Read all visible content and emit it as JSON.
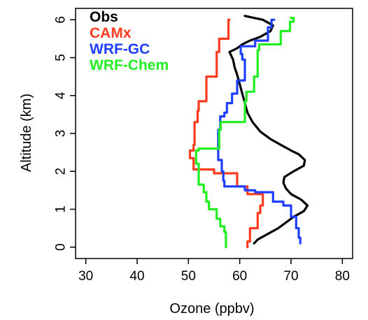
{
  "chart_data": {
    "type": "line",
    "title": "",
    "xlabel": "Ozone (ppbv)",
    "ylabel": "Altitude (km)",
    "xlim": [
      28,
      82
    ],
    "ylim": [
      -0.3,
      6.3
    ],
    "x_ticks": [
      "30",
      "40",
      "50",
      "60",
      "70",
      "80"
    ],
    "y_ticks": [
      "0",
      "1",
      "2",
      "3",
      "4",
      "5",
      "6"
    ],
    "legend_position": "top-left",
    "series": [
      {
        "name": "Obs",
        "color": "#000000",
        "points": [
          [
            62.8,
            0.1
          ],
          [
            63.5,
            0.2
          ],
          [
            65.5,
            0.35
          ],
          [
            67.5,
            0.5
          ],
          [
            69,
            0.65
          ],
          [
            70.5,
            0.8
          ],
          [
            72.5,
            0.95
          ],
          [
            73.2,
            1.1
          ],
          [
            72,
            1.25
          ],
          [
            70,
            1.4
          ],
          [
            69,
            1.55
          ],
          [
            68.5,
            1.7
          ],
          [
            68.7,
            1.85
          ],
          [
            70.5,
            2
          ],
          [
            72.5,
            2.15
          ],
          [
            72.7,
            2.3
          ],
          [
            71.5,
            2.45
          ],
          [
            70,
            2.55
          ],
          [
            68,
            2.7
          ],
          [
            66,
            2.85
          ],
          [
            64,
            3.05
          ],
          [
            62.5,
            3.3
          ],
          [
            61.5,
            3.55
          ],
          [
            61,
            3.8
          ],
          [
            60.5,
            4.05
          ],
          [
            60,
            4.3
          ],
          [
            59.5,
            4.55
          ],
          [
            59,
            4.75
          ],
          [
            58.7,
            4.95
          ],
          [
            58,
            5.15
          ],
          [
            59.5,
            5.25
          ],
          [
            60.5,
            5.35
          ],
          [
            62,
            5.45
          ],
          [
            64,
            5.55
          ],
          [
            66,
            5.7
          ],
          [
            66.5,
            5.85
          ],
          [
            64.5,
            6
          ],
          [
            61,
            6.1
          ]
        ]
      },
      {
        "name": "CAMx",
        "color": "#ff3b1f",
        "steps": [
          [
            61.5,
            0
          ],
          [
            62,
            0.15
          ],
          [
            63.5,
            0.5
          ],
          [
            64,
            0.9
          ],
          [
            64.5,
            1.1
          ],
          [
            61.5,
            1.4
          ],
          [
            59.5,
            1.6
          ],
          [
            55,
            1.95
          ],
          [
            51,
            2.05
          ],
          [
            50.3,
            2.35
          ],
          [
            51,
            2.55
          ],
          [
            51.2,
            2.7
          ],
          [
            51.8,
            3.3
          ],
          [
            52,
            3.6
          ],
          [
            53.5,
            3.85
          ],
          [
            53.5,
            4.4
          ],
          [
            55.5,
            4.5
          ],
          [
            56,
            5.15
          ],
          [
            57.8,
            5.5
          ],
          [
            58,
            6
          ]
        ]
      },
      {
        "name": "WRF-GC",
        "color": "#1f3fff",
        "steps": [
          [
            71.8,
            0.1
          ],
          [
            71.5,
            0.25
          ],
          [
            71,
            0.5
          ],
          [
            70,
            0.8
          ],
          [
            68.5,
            1.1
          ],
          [
            66.5,
            1.2
          ],
          [
            63,
            1.45
          ],
          [
            61,
            1.5
          ],
          [
            57,
            1.6
          ],
          [
            56.8,
            1.75
          ],
          [
            56.5,
            2
          ],
          [
            55.8,
            2.3
          ],
          [
            56.2,
            3.1
          ],
          [
            57,
            3.45
          ],
          [
            57.5,
            3.55
          ],
          [
            58.5,
            3.8
          ],
          [
            59.5,
            4.05
          ],
          [
            61,
            4.4
          ],
          [
            60.5,
            4.95
          ],
          [
            60.2,
            5.1
          ],
          [
            63,
            5.3
          ],
          [
            65.5,
            5.45
          ],
          [
            66.2,
            5.8
          ],
          [
            66.7,
            6
          ]
        ]
      },
      {
        "name": "WRF-Chem",
        "color": "#22ee22",
        "steps": [
          [
            57.3,
            0
          ],
          [
            57,
            0.4
          ],
          [
            56.2,
            0.55
          ],
          [
            55.5,
            0.75
          ],
          [
            54,
            1
          ],
          [
            53.5,
            1.2
          ],
          [
            53,
            1.45
          ],
          [
            52,
            1.65
          ],
          [
            51.5,
            2.2
          ],
          [
            52,
            2.55
          ],
          [
            56,
            2.6
          ],
          [
            56.3,
            3.1
          ],
          [
            61,
            3.3
          ],
          [
            61.3,
            3.85
          ],
          [
            62.8,
            4.1
          ],
          [
            63.5,
            4.5
          ],
          [
            63.8,
            5.2
          ],
          [
            68,
            5.35
          ],
          [
            69.8,
            5.7
          ],
          [
            70.5,
            5.95
          ],
          [
            70,
            6.05
          ]
        ]
      }
    ]
  }
}
